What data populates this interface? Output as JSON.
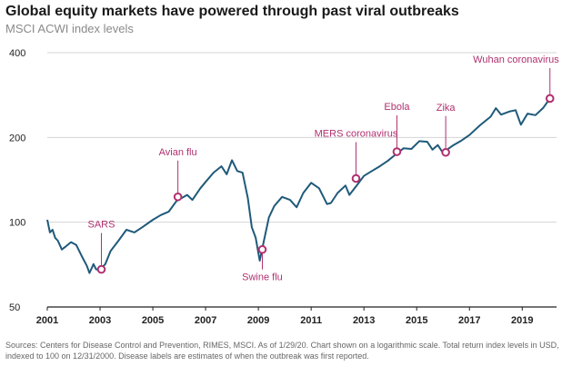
{
  "title": "Global equity markets have powered through past viral outbreaks",
  "subtitle": "MSCI ACWI index levels",
  "source": "Sources: Centers for Disease Control and Prevention, RIMES, MSCI. As of 1/29/20. Chart shown on a logarithmic scale. Total return index levels in USD, indexed to 100 on 12/31/2000. Disease labels are estimates of when the outbreak was first reported.",
  "colors": {
    "line": "#1f5a7a",
    "marker": "#b0306f",
    "label": "#b0306f",
    "grid": "#d4d4d4",
    "axis": "#222222"
  },
  "chart_data": {
    "type": "line",
    "title": "Global equity markets have powered through past viral outbreaks",
    "subtitle": "MSCI ACWI index levels",
    "xlabel": "",
    "ylabel": "",
    "y_scale": "log",
    "ylim": [
      50,
      400
    ],
    "xlim": [
      2001,
      2020.3
    ],
    "yticks": [
      50,
      100,
      200,
      400
    ],
    "xticks": [
      2001,
      2003,
      2005,
      2007,
      2009,
      2011,
      2013,
      2015,
      2017,
      2019
    ],
    "grid": "horizontal",
    "series": [
      {
        "x": [
          2001.0,
          2001.1,
          2001.2,
          2001.3,
          2001.4,
          2001.55,
          2001.7,
          2001.9,
          2002.1,
          2002.3,
          2002.5,
          2002.6,
          2002.75,
          2002.85,
          2003.0,
          2003.2,
          2003.4,
          2003.7,
          2004.0,
          2004.3,
          2004.6,
          2005.0,
          2005.3,
          2005.6,
          2005.9,
          2006.3,
          2006.5,
          2006.8,
          2007.0,
          2007.3,
          2007.6,
          2007.8,
          2008.0,
          2008.2,
          2008.4,
          2008.6,
          2008.75,
          2008.9,
          2009.05,
          2009.2,
          2009.4,
          2009.6,
          2009.9,
          2010.2,
          2010.45,
          2010.7,
          2011.0,
          2011.3,
          2011.6,
          2011.75,
          2012.0,
          2012.3,
          2012.45,
          2012.7,
          2013.0,
          2013.3,
          2013.6,
          2013.9,
          2014.2,
          2014.5,
          2014.8,
          2015.1,
          2015.4,
          2015.6,
          2015.8,
          2016.0,
          2016.15,
          2016.4,
          2016.7,
          2017.0,
          2017.4,
          2017.8,
          2018.0,
          2018.2,
          2018.5,
          2018.75,
          2018.95,
          2019.2,
          2019.5,
          2019.8,
          2020.05
        ],
        "y": [
          102,
          92,
          94,
          88,
          86,
          80,
          82,
          85,
          83,
          76,
          70,
          66,
          71,
          68,
          68,
          71,
          79,
          86,
          94,
          92,
          96,
          102,
          106,
          109,
          119,
          125,
          120,
          132,
          139,
          150,
          158,
          148,
          166,
          152,
          150,
          122,
          96,
          88,
          73,
          85,
          104,
          114,
          123,
          120,
          113,
          127,
          138,
          132,
          116,
          117,
          127,
          135,
          125,
          134,
          146,
          152,
          158,
          165,
          174,
          183,
          182,
          194,
          193,
          181,
          188,
          176,
          181,
          188,
          195,
          204,
          221,
          237,
          254,
          241,
          247,
          250,
          222,
          243,
          240,
          255,
          275
        ]
      }
    ],
    "annotations": [
      {
        "label": "SARS",
        "x": 2003.05,
        "y": 68,
        "label_pos": "above"
      },
      {
        "label": "Avian flu",
        "x": 2005.95,
        "y": 123,
        "label_pos": "above"
      },
      {
        "label": "Swine flu",
        "x": 2009.15,
        "y": 80,
        "label_pos": "below"
      },
      {
        "label": "MERS coronavirus",
        "x": 2012.7,
        "y": 143,
        "label_pos": "above"
      },
      {
        "label": "Ebola",
        "x": 2014.25,
        "y": 178,
        "label_pos": "above"
      },
      {
        "label": "Zika",
        "x": 2016.1,
        "y": 177,
        "label_pos": "above"
      },
      {
        "label": "Wuhan coronavirus",
        "x": 2020.05,
        "y": 275,
        "label_pos": "above"
      }
    ]
  }
}
